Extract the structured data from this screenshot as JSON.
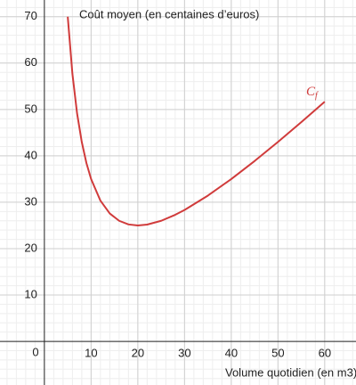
{
  "chart_data": {
    "type": "line",
    "y_label": "Coût moyen (en centaines d’euros)",
    "x_label": "Volume quotidien (en m3)",
    "origin_label": "0",
    "x": [
      5,
      6,
      7,
      8,
      9,
      10,
      12,
      14,
      16,
      18,
      20,
      22,
      25,
      28,
      30,
      35,
      40,
      45,
      50,
      55,
      60
    ],
    "series": [
      {
        "name": "C",
        "name_sub": "f",
        "color": "#d03b3b",
        "values": [
          70,
          57.67,
          49.14,
          43,
          38.44,
          35,
          30.33,
          27.57,
          26,
          25.22,
          25,
          25.18,
          26,
          27.29,
          28.33,
          31.43,
          35,
          38.89,
          43,
          47.27,
          51.67
        ]
      }
    ],
    "xlim": [
      -9.5,
      66.7
    ],
    "ylim": [
      -9.4,
      73.6
    ],
    "xticks": [
      10,
      20,
      30,
      40,
      50,
      60
    ],
    "yticks": [
      10,
      20,
      30,
      40,
      50,
      60,
      70
    ],
    "minor_step": 2,
    "grid": true
  }
}
